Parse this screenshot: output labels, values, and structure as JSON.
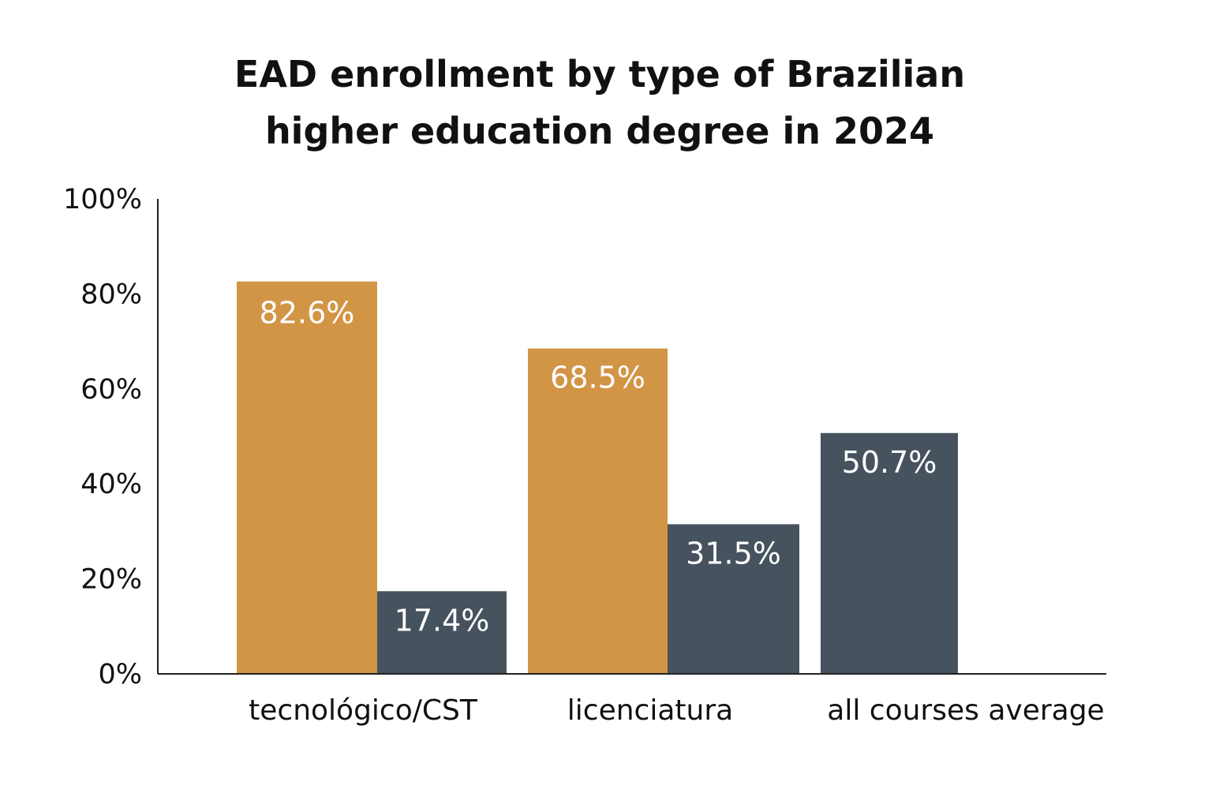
{
  "chart_data": {
    "type": "bar",
    "title_lines": [
      "EAD enrollment by type of Brazilian",
      "higher education degree in 2024"
    ],
    "categories": [
      "tecnológico/CST",
      "licenciatura",
      "all courses average"
    ],
    "bars": [
      {
        "category": "tecnológico/CST",
        "value": 82.6,
        "label": "82.6%",
        "color": "#d29546"
      },
      {
        "category": "tecnológico/CST",
        "value": 17.4,
        "label": "17.4%",
        "color": "#46535e"
      },
      {
        "category": "licenciatura",
        "value": 68.5,
        "label": "68.5%",
        "color": "#d29546"
      },
      {
        "category": "licenciatura",
        "value": 31.5,
        "label": "31.5%",
        "color": "#46535e"
      },
      {
        "category": "all courses average",
        "value": 50.7,
        "label": "50.7%",
        "color": "#46535e"
      }
    ],
    "y_ticks": [
      "0%",
      "20%",
      "40%",
      "60%",
      "80%",
      "100%"
    ],
    "ylim": [
      0,
      100
    ],
    "grid": false,
    "legend": "none",
    "colors": {
      "orange": "#d29546",
      "slate": "#46535e",
      "axis": "#222222",
      "text": "#111111",
      "label_text": "#ffffff"
    }
  }
}
